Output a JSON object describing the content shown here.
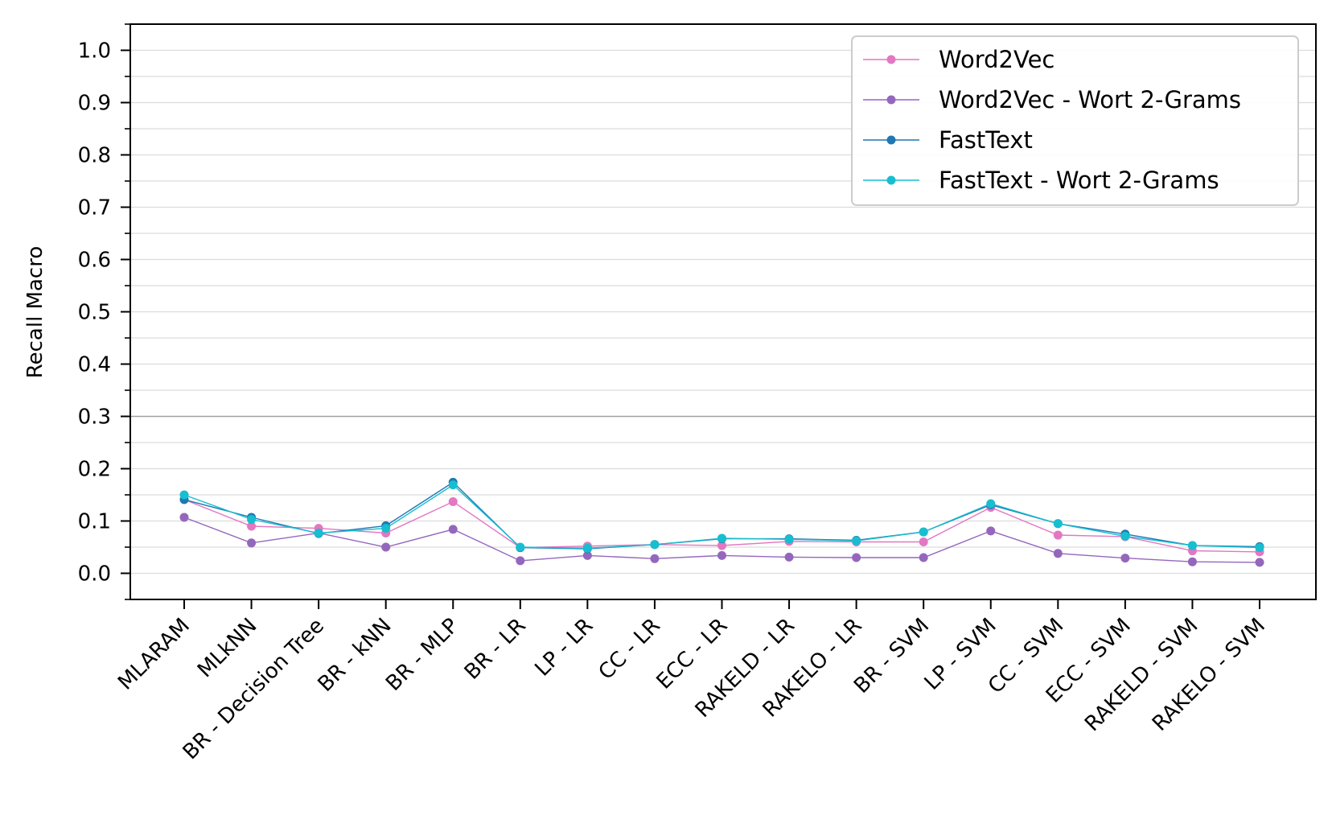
{
  "chart_data": {
    "type": "line",
    "title": "",
    "xlabel": "",
    "ylabel": "Recall Macro",
    "ylim": [
      -0.05,
      1.05
    ],
    "yticks": [
      "0.0",
      "0.1",
      "0.2",
      "0.3",
      "0.4",
      "0.5",
      "0.6",
      "0.7",
      "0.8",
      "0.9",
      "1.0"
    ],
    "grid": "horizontal",
    "legend_position": "top-right",
    "categories": [
      "MLARAM",
      "MLkNN",
      "BR - Decision Tree",
      "BR - kNN",
      "BR - MLP",
      "BR - LR",
      "LP - LR",
      "CC - LR",
      "ECC - LR",
      "RAKELD - LR",
      "RAKELO - LR",
      "BR - SVM",
      "LP - SVM",
      "CC - SVM",
      "ECC - SVM",
      "RAKELD - SVM",
      "RAKELO - SVM"
    ],
    "series": [
      {
        "name": "Word2Vec",
        "color": "#e377c2",
        "values": [
          0.141,
          0.09,
          0.086,
          0.077,
          0.137,
          0.049,
          0.052,
          0.055,
          0.053,
          0.061,
          0.06,
          0.06,
          0.126,
          0.073,
          0.07,
          0.043,
          0.041
        ]
      },
      {
        "name": "Word2Vec - Wort 2-Grams",
        "color": "#9467bd",
        "values": [
          0.107,
          0.058,
          0.077,
          0.05,
          0.084,
          0.024,
          0.034,
          0.028,
          0.034,
          0.031,
          0.03,
          0.03,
          0.081,
          0.038,
          0.029,
          0.022,
          0.021
        ]
      },
      {
        "name": "FastText",
        "color": "#1f77b4",
        "values": [
          0.141,
          0.107,
          0.076,
          0.091,
          0.174,
          0.049,
          0.047,
          0.055,
          0.066,
          0.066,
          0.063,
          0.079,
          0.131,
          0.095,
          0.075,
          0.053,
          0.051
        ]
      },
      {
        "name": "FastText - Wort 2-Grams",
        "color": "#17becf",
        "values": [
          0.15,
          0.103,
          0.077,
          0.086,
          0.169,
          0.05,
          0.048,
          0.055,
          0.067,
          0.065,
          0.062,
          0.079,
          0.133,
          0.095,
          0.071,
          0.053,
          0.049
        ]
      }
    ]
  }
}
